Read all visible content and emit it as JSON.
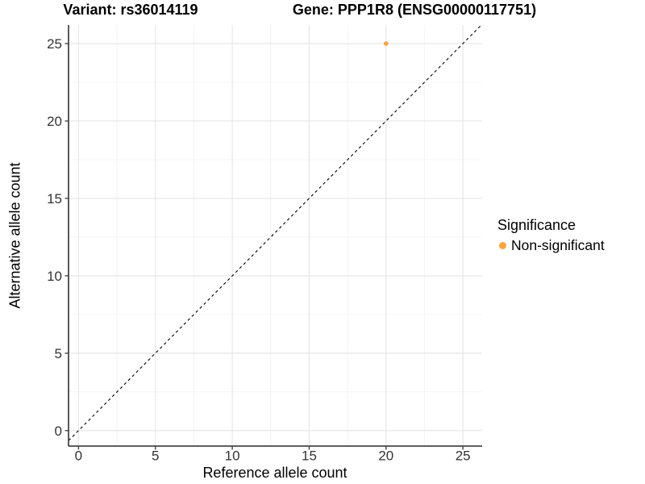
{
  "figure": {
    "title_variant": "Variant: rs36014119",
    "title_gene": "Gene: PPP1R8 (ENSG00000117751)"
  },
  "chart_data": {
    "type": "scatter",
    "titles": [
      "Variant: rs36014119",
      "Gene: PPP1R8 (ENSG00000117751)"
    ],
    "xlabel": "Reference allele count",
    "ylabel": "Alternative allele count",
    "xlim": [
      -0.65,
      26.25
    ],
    "ylim": [
      -1.0,
      26.2
    ],
    "x_ticks": [
      0,
      5,
      10,
      15,
      20,
      25
    ],
    "y_ticks": [
      0,
      5,
      10,
      15,
      20,
      25
    ],
    "x_minor_ticks": [
      2.5,
      7.5,
      12.5,
      17.5,
      22.5
    ],
    "y_minor_ticks": [
      2.5,
      7.5,
      12.5,
      17.5,
      22.5
    ],
    "grid": "major+minor",
    "legend_position": "right",
    "series": [
      {
        "name": "Non-significant",
        "color": "#FBA33C",
        "points": [
          {
            "x": 20,
            "y": 25
          }
        ]
      }
    ],
    "reference_line": {
      "type": "identity",
      "style": "dashed",
      "color": "#000000",
      "from": -0.65,
      "to": 26.2
    }
  },
  "legend": {
    "title": "Significance",
    "items": [
      {
        "label": "Non-significant",
        "color": "#FBA33C"
      }
    ]
  },
  "colors": {
    "point": "#FBA33C",
    "grid_major": "#E4E4E4",
    "grid_minor": "#F1F1F1",
    "axis_line": "#474747",
    "tick_label": "#333333",
    "reference_line": "#000000"
  }
}
